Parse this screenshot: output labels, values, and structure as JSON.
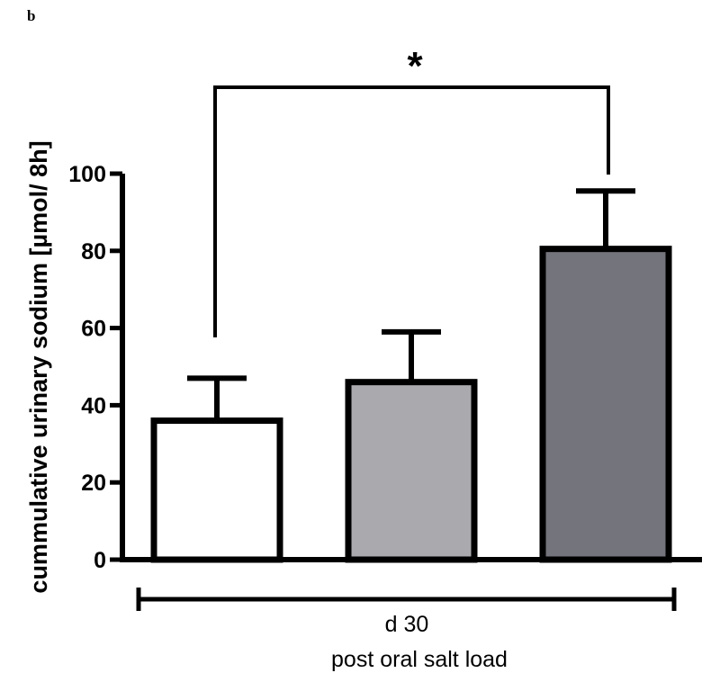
{
  "panel_label": "b",
  "chart_data": {
    "type": "bar",
    "title": "",
    "ylabel": "cummulative urinary sodium [µmol/ 8h]",
    "xlabel": "",
    "ylim": [
      0,
      100
    ],
    "yticks": [
      0,
      20,
      40,
      60,
      80,
      100
    ],
    "ytick_labels": [
      "0",
      "20",
      "40",
      "60",
      "80",
      "100"
    ],
    "bars": [
      {
        "value": 36,
        "error": 11,
        "color": "#ffffff"
      },
      {
        "value": 46,
        "error": 13,
        "color": "#a9a9ae"
      },
      {
        "value": 80.5,
        "error": 15,
        "color": "#74747c"
      }
    ],
    "group_bracket": {
      "line1": "d 30",
      "line2": "post oral salt load"
    },
    "significance": {
      "label": "*",
      "between": [
        0,
        2
      ]
    }
  }
}
